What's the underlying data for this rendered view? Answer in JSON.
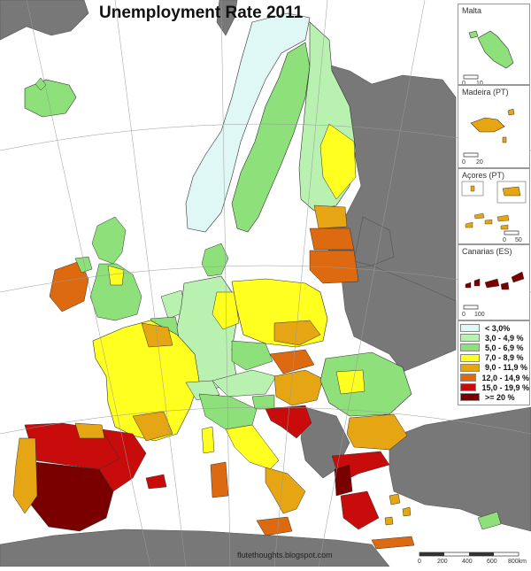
{
  "title": "Unemployment Rate 2011",
  "credit": "flutethoughts.blogspot.com",
  "insets": [
    {
      "key": "malta",
      "label": "Malta",
      "scale": [
        "0",
        "10"
      ]
    },
    {
      "key": "madeira",
      "label": "Madeira (PT)",
      "scale": [
        "0",
        "20"
      ]
    },
    {
      "key": "acores",
      "label": "Açores (PT)",
      "scale": [
        "0",
        "50"
      ]
    },
    {
      "key": "canarias",
      "label": "Canarias (ES)",
      "scale": [
        "0",
        "100"
      ]
    }
  ],
  "legend": [
    {
      "label": "< 3,0%",
      "color": "#e0f8f5"
    },
    {
      "label": "3,0 - 4,9 %",
      "color": "#b9f2b0"
    },
    {
      "label": "5,0 - 6,9 %",
      "color": "#8de07a"
    },
    {
      "label": "7,0 - 8,9 %",
      "color": "#ffff20"
    },
    {
      "label": "9,0 - 11,9 %",
      "color": "#e6a512"
    },
    {
      "label": "12,0 - 14,9 %",
      "color": "#dd6a10"
    },
    {
      "label": "15,0 - 19,9 %",
      "color": "#c80b0b"
    },
    {
      "label": ">= 20 %",
      "color": "#7a0000"
    }
  ],
  "scale_bar": {
    "ticks": [
      "0",
      "200",
      "400",
      "600",
      "800km"
    ]
  },
  "colors": {
    "non_eu_land": "#787878",
    "sea": "#ffffff",
    "border": "#000000"
  }
}
